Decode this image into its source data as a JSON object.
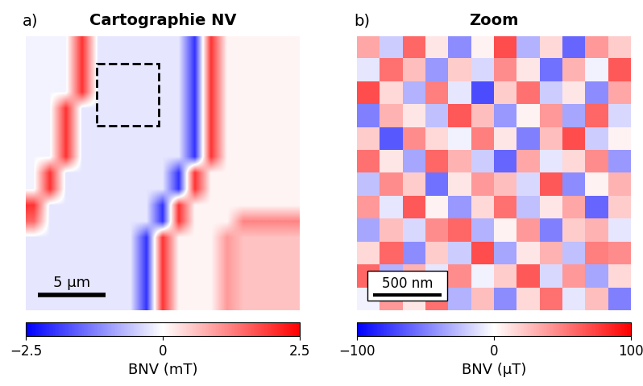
{
  "chart_data": [
    {
      "type": "heatmap",
      "panel": "a)",
      "title": "Cartographie NV",
      "tick_labels": false,
      "scale_bar": "5 µm",
      "colorbar_label": "BNV (mT)",
      "clim": [
        -2.5,
        2.5
      ],
      "cticks": [
        {
          "value": -2.5,
          "label": "−2.5"
        },
        0,
        2.5
      ],
      "cells": [
        [
          -0.1,
          -0.1,
          -0.1,
          2.0,
          -0.25,
          -0.25,
          -0.25,
          -0.25,
          -0.25,
          -0.25,
          -2.0,
          2.0,
          0.1,
          0.1,
          0.1,
          0.1,
          0.1
        ],
        [
          -0.1,
          -0.1,
          -0.1,
          2.0,
          -0.25,
          -0.25,
          -0.25,
          -0.25,
          -0.25,
          -0.25,
          -2.0,
          2.0,
          0.1,
          0.1,
          0.1,
          0.1,
          0.1
        ],
        [
          -0.1,
          -0.1,
          -0.1,
          2.0,
          -0.25,
          -0.25,
          -0.25,
          -0.25,
          -0.25,
          -0.25,
          -2.0,
          2.0,
          0.1,
          0.1,
          0.1,
          0.1,
          0.1
        ],
        [
          -0.1,
          -0.1,
          -0.1,
          2.0,
          -0.25,
          -0.25,
          -0.25,
          -0.25,
          -0.25,
          -0.25,
          -2.0,
          2.0,
          0.1,
          0.1,
          0.1,
          0.1,
          0.1
        ],
        [
          -0.1,
          -0.1,
          2.0,
          -0.25,
          -0.25,
          -0.25,
          -0.25,
          -0.25,
          -0.25,
          -0.25,
          -2.0,
          2.0,
          0.1,
          0.1,
          0.1,
          0.1,
          0.1
        ],
        [
          -0.1,
          -0.1,
          2.0,
          -0.25,
          -0.25,
          -0.25,
          -0.25,
          -0.25,
          -0.25,
          -0.25,
          -2.0,
          2.0,
          0.1,
          0.1,
          0.1,
          0.1,
          0.1
        ],
        [
          -0.1,
          -0.1,
          2.0,
          -0.25,
          -0.25,
          -0.25,
          -0.25,
          -0.25,
          -0.25,
          -0.25,
          -2.0,
          2.0,
          0.1,
          0.1,
          0.1,
          0.1,
          0.1
        ],
        [
          -0.1,
          -0.1,
          2.0,
          -0.25,
          -0.25,
          -0.25,
          -0.25,
          -0.25,
          -0.25,
          -0.25,
          -2.0,
          2.0,
          0.1,
          0.1,
          0.1,
          0.1,
          0.1
        ],
        [
          -0.1,
          2.0,
          -0.25,
          -0.25,
          -0.25,
          -0.25,
          -0.25,
          -0.25,
          -0.25,
          -2.0,
          2.0,
          0.1,
          0.1,
          0.1,
          0.1,
          0.1,
          0.1
        ],
        [
          -0.1,
          2.0,
          -0.25,
          -0.25,
          -0.25,
          -0.25,
          -0.25,
          -0.25,
          -0.25,
          -2.0,
          2.0,
          0.1,
          0.1,
          0.1,
          0.1,
          0.1,
          0.1
        ],
        [
          2.0,
          -0.25,
          -0.25,
          -0.25,
          -0.25,
          -0.25,
          -0.25,
          -0.25,
          -2.0,
          2.0,
          0.1,
          0.1,
          0.1,
          0.1,
          0.1,
          0.1,
          0.1
        ],
        [
          1.5,
          -0.25,
          -0.25,
          -0.25,
          -0.25,
          -0.25,
          -0.25,
          -0.25,
          -2.0,
          2.0,
          0.1,
          0.1,
          0.1,
          1.2,
          1.2,
          1.2,
          1.2
        ],
        [
          -0.25,
          -0.25,
          -0.25,
          -0.25,
          -0.25,
          -0.25,
          -0.25,
          -2.0,
          2.0,
          0.1,
          0.1,
          0.1,
          1.0,
          0.6,
          0.6,
          0.6,
          0.6
        ],
        [
          -0.25,
          -0.25,
          -0.25,
          -0.25,
          -0.25,
          -0.25,
          -0.25,
          -2.0,
          2.0,
          0.1,
          0.1,
          0.1,
          1.0,
          0.6,
          0.6,
          0.6,
          0.6
        ],
        [
          -0.25,
          -0.25,
          -0.25,
          -0.25,
          -0.25,
          -0.25,
          -0.25,
          -2.0,
          2.0,
          0.1,
          0.1,
          0.1,
          1.0,
          0.6,
          0.6,
          0.6,
          0.6
        ],
        [
          -0.25,
          -0.25,
          -0.25,
          -0.25,
          -0.25,
          -0.25,
          -0.25,
          -2.0,
          2.0,
          0.1,
          0.1,
          0.1,
          1.0,
          0.6,
          0.6,
          0.6,
          0.6
        ],
        [
          -0.25,
          -0.25,
          -0.25,
          -0.25,
          -0.25,
          -0.25,
          -0.25,
          -2.0,
          2.0,
          0.1,
          0.1,
          0.1,
          1.0,
          0.6,
          0.6,
          0.6,
          0.6
        ]
      ]
    },
    {
      "type": "heatmap",
      "panel": "b)",
      "title": "Zoom",
      "tick_labels": false,
      "scale_bar": "500 nm",
      "colorbar_label": "BNV (µT)",
      "clim": [
        -100,
        100
      ],
      "cticks": [
        {
          "value": -100,
          "label": "−100"
        },
        0,
        100
      ],
      "cells": [
        [
          35,
          -20,
          60,
          10,
          -45,
          5,
          70,
          -30,
          15,
          -60,
          40,
          20
        ],
        [
          -10,
          55,
          25,
          -40,
          20,
          -15,
          45,
          10,
          -55,
          30,
          -5,
          65
        ],
        [
          70,
          15,
          -30,
          50,
          -10,
          -70,
          20,
          55,
          -20,
          10,
          -45,
          35
        ],
        [
          -50,
          30,
          10,
          -25,
          65,
          25,
          -40,
          5,
          40,
          -35,
          60,
          -15
        ],
        [
          20,
          -65,
          45,
          15,
          -5,
          50,
          10,
          -50,
          25,
          70,
          -20,
          5
        ],
        [
          55,
          10,
          -35,
          60,
          30,
          -20,
          -60,
          35,
          -10,
          15,
          45,
          -40
        ],
        [
          -25,
          45,
          20,
          -55,
          10,
          40,
          25,
          -15,
          65,
          -45,
          5,
          30
        ],
        [
          40,
          -10,
          65,
          5,
          -40,
          15,
          55,
          -25,
          10,
          35,
          -60,
          20
        ],
        [
          -35,
          25,
          -15,
          45,
          60,
          -30,
          5,
          40,
          -50,
          20,
          30,
          -10
        ],
        [
          15,
          60,
          -45,
          20,
          -20,
          70,
          -35,
          10,
          30,
          -25,
          50,
          45
        ],
        [
          60,
          -30,
          30,
          -10,
          45,
          -5,
          20,
          65,
          -15,
          40,
          -35,
          15
        ],
        [
          -5,
          40,
          10,
          55,
          -30,
          25,
          -45,
          15,
          55,
          -10,
          25,
          -50
        ]
      ]
    }
  ]
}
